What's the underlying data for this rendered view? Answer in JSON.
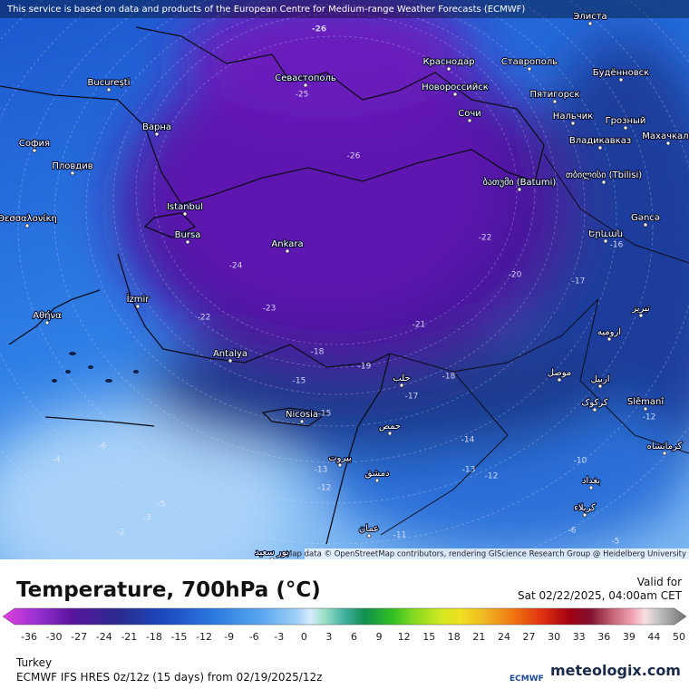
{
  "attribution": "This service is based on data and products of the European Centre for Medium-range Weather Forecasts (ECMWF)",
  "map": {
    "cities": [
      "Элиста",
      "Ставрополь",
      "Краснодар",
      "Новороссийск",
      "Будённовск",
      "Пятигорск",
      "Нальчик",
      "Грозный",
      "Махачкала",
      "Сочи",
      "Владикавказ",
      "Севастополь",
      "București",
      "Варна",
      "София",
      "Пловдив",
      "Θεσσαλονίκη",
      "Istanbul",
      "Bursa",
      "Ankara",
      "İzmir",
      "Αθήνα",
      "Antalya",
      "ბათუმი (Batumi)",
      "თბილისი (Tbilisi)",
      "Gəncə",
      "Երևան",
      "تبریز",
      "ارومیه",
      "موصل",
      "اربیل",
      "حلب",
      "کرکوک",
      "Slêmanî",
      "Nicosia",
      "حمص",
      "کرمانشاه",
      "بيروت",
      "دمشق",
      "بغداد",
      "کربلاء",
      "عمان",
      "بور سعيد"
    ],
    "contour_labels": [
      -26,
      -25,
      -26,
      -24,
      -23,
      -22,
      -21,
      -22,
      -20,
      -19,
      -18,
      -18,
      -17,
      -17,
      -16,
      -15,
      -15,
      -14,
      -13,
      -13,
      -12,
      -12,
      -12,
      -11,
      -10,
      -6,
      -6,
      -5,
      -5,
      -4,
      -3,
      -2
    ]
  },
  "map_credit": "Map data © OpenStreetMap contributors, rendering GIScience Research Group @ Heidelberg University",
  "legend": {
    "title": "Temperature, 700hPa (°C)",
    "ticks": [
      -36,
      -30,
      -27,
      -24,
      -21,
      -18,
      -15,
      -12,
      -9,
      -6,
      -3,
      0,
      3,
      6,
      9,
      12,
      15,
      18,
      21,
      24,
      27,
      30,
      33,
      36,
      39,
      44,
      50
    ]
  },
  "valid_label": "Valid for",
  "valid_time": "Sat 02/22/2025, 04:00am CET",
  "region": "Turkey",
  "model_info": "ECMWF IFS HRES 0z/12z (15 days) from 02/19/2025/12z",
  "logos": {
    "ecmwf": "ECMWF",
    "brand": "meteologix.com"
  }
}
